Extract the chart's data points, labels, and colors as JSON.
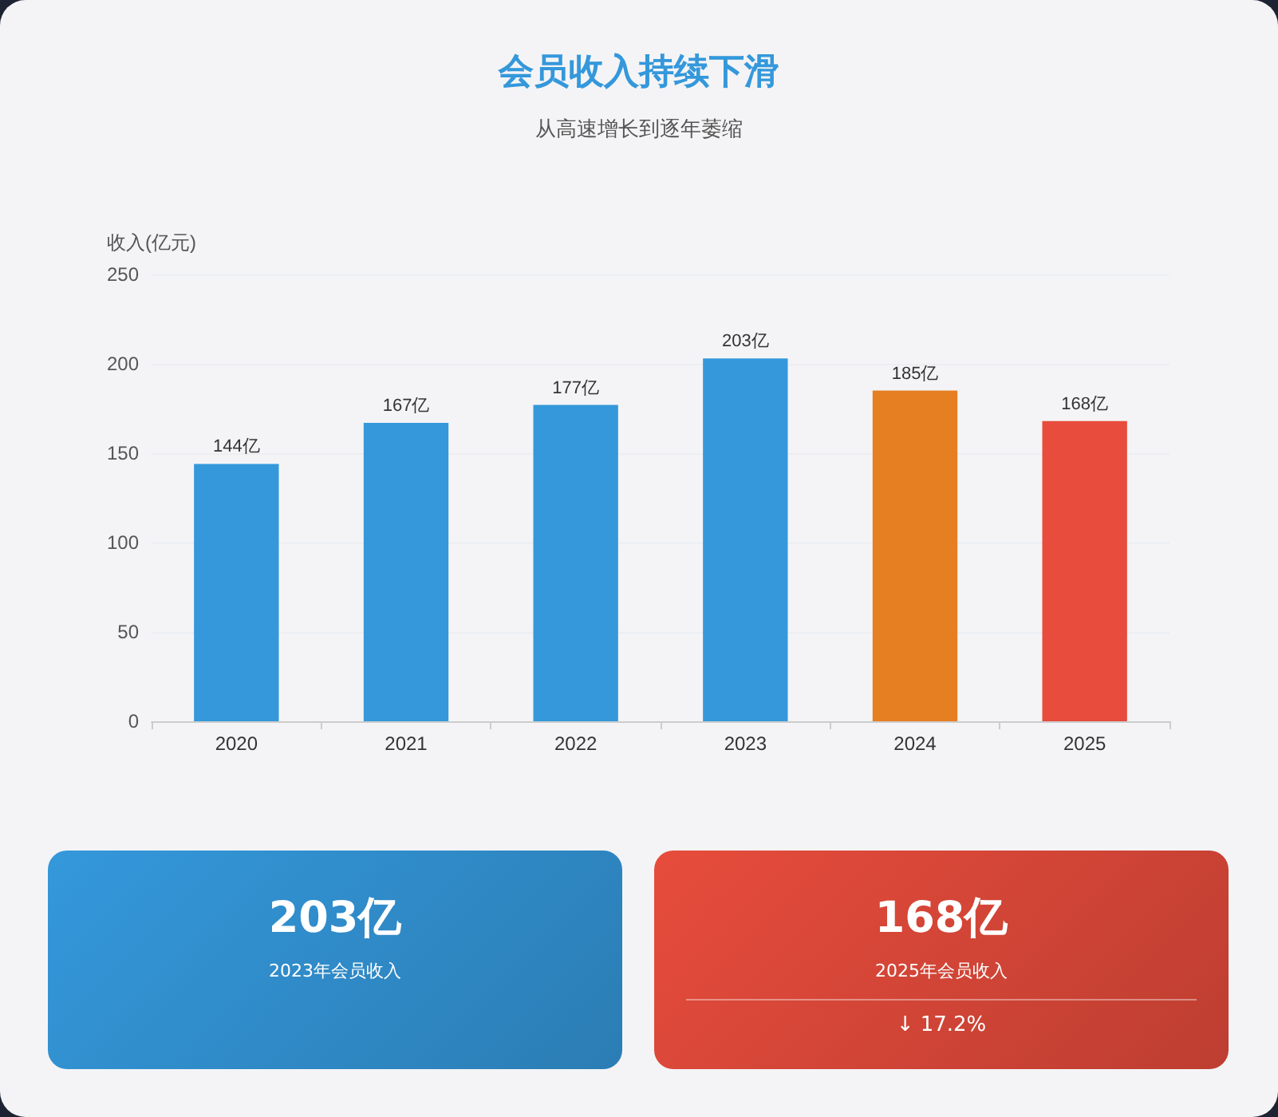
{
  "chart_data": [
    {
      "type": "bar",
      "title": "会员收入持续下滑",
      "subtitle": "从高速增长到逐年萎缩",
      "ylabel": "收入(亿元)",
      "categories": [
        "2020",
        "2021",
        "2022",
        "2023",
        "2024",
        "2025"
      ],
      "values": [
        144,
        167,
        177,
        203,
        185,
        168
      ],
      "colors": [
        "#3498db",
        "#3498db",
        "#3498db",
        "#3498db",
        "#e67e22",
        "#e74c3c"
      ],
      "value_labels": [
        "144亿",
        "167亿",
        "177亿",
        "203亿",
        "185亿",
        "168亿"
      ],
      "ylim": [
        0,
        250
      ],
      "yticks": [
        0,
        50,
        100,
        150,
        200,
        250
      ],
      "grid": "y"
    },
    {
      "type": "other",
      "title": "203亿",
      "subtitle": "2023年会员收入",
      "color": "#3498db"
    },
    {
      "type": "other",
      "title": "168亿",
      "subtitle": "2025年会员收入",
      "annotations": [
        "↓ 17.2%"
      ],
      "color": "#e74c3c"
    }
  ]
}
